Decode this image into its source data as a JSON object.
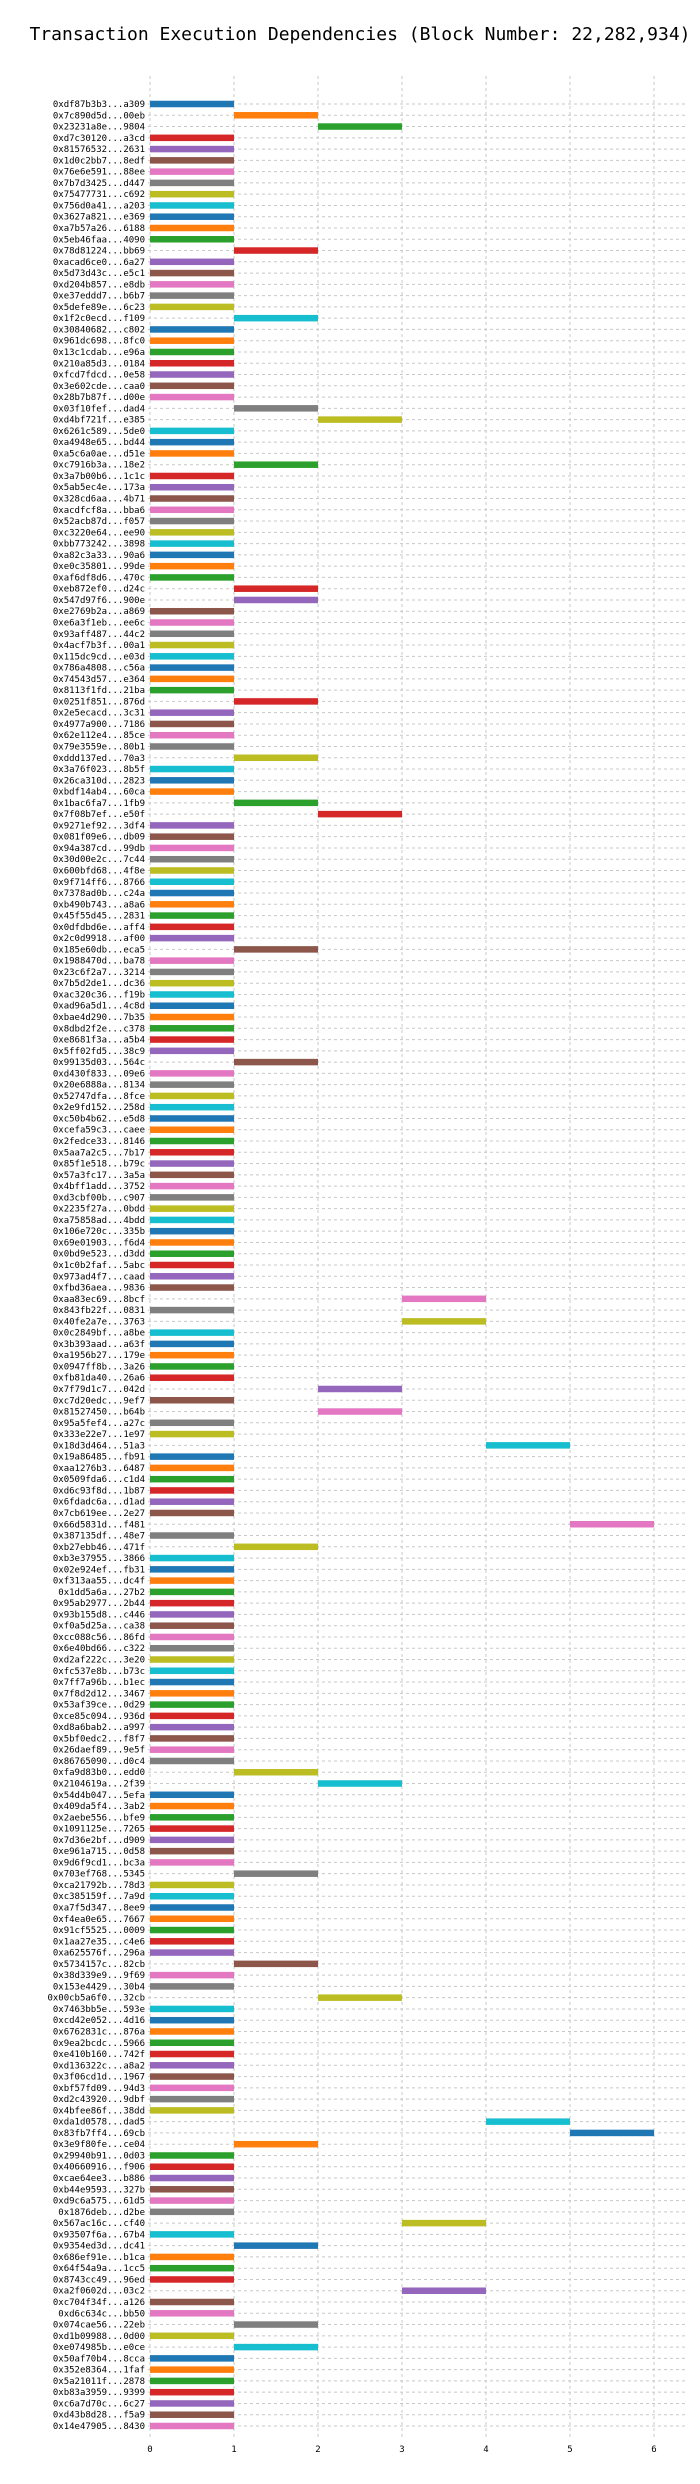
{
  "chart_data": {
    "type": "bar",
    "orientation": "horizontal",
    "title": "Transaction Execution Dependencies (Block Number: 22,282,934)",
    "xlabel": "",
    "ylabel": "",
    "xlim": [
      0,
      6.4
    ],
    "x_ticks": [
      "0",
      "1",
      "2",
      "3",
      "4",
      "5",
      "6"
    ],
    "grid": true,
    "palette": [
      "#1f77b4",
      "#ff7f0e",
      "#2ca02c",
      "#d62728",
      "#9467bd",
      "#8c564b",
      "#e377c2",
      "#7f7f7f",
      "#bcbd22",
      "#17becf"
    ],
    "transactions": [
      {
        "label": "0xdf87b3b3...a309",
        "start": 0,
        "end": 1
      },
      {
        "label": "0x7c890d5d...00eb",
        "start": 1,
        "end": 2
      },
      {
        "label": "0x23231a8e...9804",
        "start": 2,
        "end": 3
      },
      {
        "label": "0xd7c30120...a3cd",
        "start": 0,
        "end": 1
      },
      {
        "label": "0x81576532...2631",
        "start": 0,
        "end": 1
      },
      {
        "label": "0x1d0c2bb7...8edf",
        "start": 0,
        "end": 1
      },
      {
        "label": "0x76e6e591...88ee",
        "start": 0,
        "end": 1
      },
      {
        "label": "0x7b7d3425...d447",
        "start": 0,
        "end": 1
      },
      {
        "label": "0x75477731...c692",
        "start": 0,
        "end": 1
      },
      {
        "label": "0x756d0a41...a203",
        "start": 0,
        "end": 1
      },
      {
        "label": "0x3627a821...e369",
        "start": 0,
        "end": 1
      },
      {
        "label": "0xa7b57a26...6188",
        "start": 0,
        "end": 1
      },
      {
        "label": "0x5eb46faa...4090",
        "start": 0,
        "end": 1
      },
      {
        "label": "0x78d81224...bb69",
        "start": 1,
        "end": 2
      },
      {
        "label": "0xacad6ce0...6a27",
        "start": 0,
        "end": 1
      },
      {
        "label": "0x5d73d43c...e5c1",
        "start": 0,
        "end": 1
      },
      {
        "label": "0xd204b857...e8db",
        "start": 0,
        "end": 1
      },
      {
        "label": "0xe37eddd7...b6b7",
        "start": 0,
        "end": 1
      },
      {
        "label": "0x5defe89e...6c23",
        "start": 0,
        "end": 1
      },
      {
        "label": "0x1f2c0ecd...f109",
        "start": 1,
        "end": 2
      },
      {
        "label": "0x30840682...c802",
        "start": 0,
        "end": 1
      },
      {
        "label": "0x961dc698...8fc0",
        "start": 0,
        "end": 1
      },
      {
        "label": "0x13c1cdab...e96a",
        "start": 0,
        "end": 1
      },
      {
        "label": "0x210a85d3...0184",
        "start": 0,
        "end": 1
      },
      {
        "label": "0xfcd7fdcd...0e58",
        "start": 0,
        "end": 1
      },
      {
        "label": "0x3e602cde...caa0",
        "start": 0,
        "end": 1
      },
      {
        "label": "0x28b7b87f...d00e",
        "start": 0,
        "end": 1
      },
      {
        "label": "0x03f10fef...dad4",
        "start": 1,
        "end": 2
      },
      {
        "label": "0xd4bf721f...e385",
        "start": 2,
        "end": 3
      },
      {
        "label": "0x6261c589...5de0",
        "start": 0,
        "end": 1
      },
      {
        "label": "0xa4948e65...bd44",
        "start": 0,
        "end": 1
      },
      {
        "label": "0xa5c6a0ae...d51e",
        "start": 0,
        "end": 1
      },
      {
        "label": "0xc7916b3a...18e2",
        "start": 1,
        "end": 2
      },
      {
        "label": "0x3a7b00b6...1c1c",
        "start": 0,
        "end": 1
      },
      {
        "label": "0x5ab5ec4e...173a",
        "start": 0,
        "end": 1
      },
      {
        "label": "0x328cd6aa...4b71",
        "start": 0,
        "end": 1
      },
      {
        "label": "0xacdfcf8a...bba6",
        "start": 0,
        "end": 1
      },
      {
        "label": "0x52acb87d...f057",
        "start": 0,
        "end": 1
      },
      {
        "label": "0xc3220e64...ee90",
        "start": 0,
        "end": 1
      },
      {
        "label": "0xbb773242...3898",
        "start": 0,
        "end": 1
      },
      {
        "label": "0xa82c3a33...90a6",
        "start": 0,
        "end": 1
      },
      {
        "label": "0xe0c35801...99de",
        "start": 0,
        "end": 1
      },
      {
        "label": "0xaf6df8d6...470c",
        "start": 0,
        "end": 1
      },
      {
        "label": "0xeb872ef0...d24c",
        "start": 1,
        "end": 2
      },
      {
        "label": "0x547d97f6...900e",
        "start": 1,
        "end": 2
      },
      {
        "label": "0xe2769b2a...a869",
        "start": 0,
        "end": 1
      },
      {
        "label": "0xe6a3f1eb...ee6c",
        "start": 0,
        "end": 1
      },
      {
        "label": "0x93aff487...44c2",
        "start": 0,
        "end": 1
      },
      {
        "label": "0x4acf7b3f...00a1",
        "start": 0,
        "end": 1
      },
      {
        "label": "0x115dc9cd...e03d",
        "start": 0,
        "end": 1
      },
      {
        "label": "0x786a4808...c56a",
        "start": 0,
        "end": 1
      },
      {
        "label": "0x74543d57...e364",
        "start": 0,
        "end": 1
      },
      {
        "label": "0x8113f1fd...21ba",
        "start": 0,
        "end": 1
      },
      {
        "label": "0x0251f851...876d",
        "start": 1,
        "end": 2
      },
      {
        "label": "0x2e5ecacd...3c31",
        "start": 0,
        "end": 1
      },
      {
        "label": "0x4977a900...7186",
        "start": 0,
        "end": 1
      },
      {
        "label": "0x62e112e4...85ce",
        "start": 0,
        "end": 1
      },
      {
        "label": "0x79e3559e...80b1",
        "start": 0,
        "end": 1
      },
      {
        "label": "0xddd137ed...70a3",
        "start": 1,
        "end": 2
      },
      {
        "label": "0x3a76f023...8b5f",
        "start": 0,
        "end": 1
      },
      {
        "label": "0x26ca310d...2823",
        "start": 0,
        "end": 1
      },
      {
        "label": "0xbdf14ab4...60ca",
        "start": 0,
        "end": 1
      },
      {
        "label": "0x1bac6fa7...1fb9",
        "start": 1,
        "end": 2
      },
      {
        "label": "0x7f08b7ef...e50f",
        "start": 2,
        "end": 3
      },
      {
        "label": "0x9271ef92...3df4",
        "start": 0,
        "end": 1
      },
      {
        "label": "0x081f09e6...db09",
        "start": 0,
        "end": 1
      },
      {
        "label": "0x94a387cd...99db",
        "start": 0,
        "end": 1
      },
      {
        "label": "0x30d00e2c...7c44",
        "start": 0,
        "end": 1
      },
      {
        "label": "0x600bfd68...4f8e",
        "start": 0,
        "end": 1
      },
      {
        "label": "0x9f714ff6...8766",
        "start": 0,
        "end": 1
      },
      {
        "label": "0x7378ad0b...c24a",
        "start": 0,
        "end": 1
      },
      {
        "label": "0xb490b743...a8a6",
        "start": 0,
        "end": 1
      },
      {
        "label": "0x45f55d45...2831",
        "start": 0,
        "end": 1
      },
      {
        "label": "0x0dfdbd6e...aff4",
        "start": 0,
        "end": 1
      },
      {
        "label": "0x2c0d9918...af00",
        "start": 0,
        "end": 1
      },
      {
        "label": "0x185e60db...eca5",
        "start": 1,
        "end": 2
      },
      {
        "label": "0x1988470d...ba78",
        "start": 0,
        "end": 1
      },
      {
        "label": "0x23c6f2a7...3214",
        "start": 0,
        "end": 1
      },
      {
        "label": "0x7b5d2de1...dc36",
        "start": 0,
        "end": 1
      },
      {
        "label": "0xac320c36...f19b",
        "start": 0,
        "end": 1
      },
      {
        "label": "0xad96a5d1...4c8d",
        "start": 0,
        "end": 1
      },
      {
        "label": "0xbae4d290...7b35",
        "start": 0,
        "end": 1
      },
      {
        "label": "0x8dbd2f2e...c378",
        "start": 0,
        "end": 1
      },
      {
        "label": "0xe8681f3a...a5b4",
        "start": 0,
        "end": 1
      },
      {
        "label": "0x5ff02fd5...38c9",
        "start": 0,
        "end": 1
      },
      {
        "label": "0x99135d03...564c",
        "start": 1,
        "end": 2
      },
      {
        "label": "0xd430f833...09e6",
        "start": 0,
        "end": 1
      },
      {
        "label": "0x20e6888a...8134",
        "start": 0,
        "end": 1
      },
      {
        "label": "0x52747dfa...8fce",
        "start": 0,
        "end": 1
      },
      {
        "label": "0x2e9fd152...258d",
        "start": 0,
        "end": 1
      },
      {
        "label": "0xc50b4b62...e5d8",
        "start": 0,
        "end": 1
      },
      {
        "label": "0xcefa59c3...caee",
        "start": 0,
        "end": 1
      },
      {
        "label": "0x2fedce33...8146",
        "start": 0,
        "end": 1
      },
      {
        "label": "0x5aa7a2c5...7b17",
        "start": 0,
        "end": 1
      },
      {
        "label": "0x85f1e518...b79c",
        "start": 0,
        "end": 1
      },
      {
        "label": "0x57a3fc17...3a5a",
        "start": 0,
        "end": 1
      },
      {
        "label": "0x4bff1add...3752",
        "start": 0,
        "end": 1
      },
      {
        "label": "0xd3cbf00b...c907",
        "start": 0,
        "end": 1
      },
      {
        "label": "0x2235f27a...0bdd",
        "start": 0,
        "end": 1
      },
      {
        "label": "0xa75858ad...4bdd",
        "start": 0,
        "end": 1
      },
      {
        "label": "0x106e720c...335b",
        "start": 0,
        "end": 1
      },
      {
        "label": "0x69e01903...f6d4",
        "start": 0,
        "end": 1
      },
      {
        "label": "0x0bd9e523...d3dd",
        "start": 0,
        "end": 1
      },
      {
        "label": "0x1c0b2faf...5abc",
        "start": 0,
        "end": 1
      },
      {
        "label": "0x973ad4f7...caad",
        "start": 0,
        "end": 1
      },
      {
        "label": "0xfbd36aea...9836",
        "start": 0,
        "end": 1
      },
      {
        "label": "0xaa83ec69...8bcf",
        "start": 3,
        "end": 4
      },
      {
        "label": "0x843fb22f...0831",
        "start": 0,
        "end": 1
      },
      {
        "label": "0x40fe2a7e...3763",
        "start": 3,
        "end": 4
      },
      {
        "label": "0x0c2849bf...a8be",
        "start": 0,
        "end": 1
      },
      {
        "label": "0x3b393aad...a63f",
        "start": 0,
        "end": 1
      },
      {
        "label": "0xa1956b27...179e",
        "start": 0,
        "end": 1
      },
      {
        "label": "0x0947ff8b...3a26",
        "start": 0,
        "end": 1
      },
      {
        "label": "0xfb81da40...26a6",
        "start": 0,
        "end": 1
      },
      {
        "label": "0x7f79d1c7...042d",
        "start": 2,
        "end": 3
      },
      {
        "label": "0xc7d20edc...9ef7",
        "start": 0,
        "end": 1
      },
      {
        "label": "0x81527450...b64b",
        "start": 2,
        "end": 3
      },
      {
        "label": "0x95a5fef4...a27c",
        "start": 0,
        "end": 1
      },
      {
        "label": "0x333e22e7...1e97",
        "start": 0,
        "end": 1
      },
      {
        "label": "0x18d3d464...51a3",
        "start": 4,
        "end": 5
      },
      {
        "label": "0x19a86485...fb91",
        "start": 0,
        "end": 1
      },
      {
        "label": "0xaa1276b3...6487",
        "start": 0,
        "end": 1
      },
      {
        "label": "0x0509fda6...c1d4",
        "start": 0,
        "end": 1
      },
      {
        "label": "0xd6c93f8d...1b87",
        "start": 0,
        "end": 1
      },
      {
        "label": "0x6fdadc6a...d1ad",
        "start": 0,
        "end": 1
      },
      {
        "label": "0x7cb619ee...2e27",
        "start": 0,
        "end": 1
      },
      {
        "label": "0x66d5831d...f481",
        "start": 5,
        "end": 6
      },
      {
        "label": "0x387135df...48e7",
        "start": 0,
        "end": 1
      },
      {
        "label": "0xb27ebb46...471f",
        "start": 1,
        "end": 2
      },
      {
        "label": "0xb3e37955...3866",
        "start": 0,
        "end": 1
      },
      {
        "label": "0x02e924ef...fb31",
        "start": 0,
        "end": 1
      },
      {
        "label": "0xf313aa55...dc4f",
        "start": 0,
        "end": 1
      },
      {
        "label": "0x1dd5a6a...27b2",
        "start": 0,
        "end": 1
      },
      {
        "label": "0x95ab2977...2b44",
        "start": 0,
        "end": 1
      },
      {
        "label": "0x93b155d8...c446",
        "start": 0,
        "end": 1
      },
      {
        "label": "0xf0a5d25a...ca38",
        "start": 0,
        "end": 1
      },
      {
        "label": "0xcc088c56...86fd",
        "start": 0,
        "end": 1
      },
      {
        "label": "0x6e40bd66...c322",
        "start": 0,
        "end": 1
      },
      {
        "label": "0xd2af222c...3e20",
        "start": 0,
        "end": 1
      },
      {
        "label": "0xfc537e8b...b73c",
        "start": 0,
        "end": 1
      },
      {
        "label": "0x7ff7a96b...b1ec",
        "start": 0,
        "end": 1
      },
      {
        "label": "0x7f8d2d12...3467",
        "start": 0,
        "end": 1
      },
      {
        "label": "0x53af39ce...0d29",
        "start": 0,
        "end": 1
      },
      {
        "label": "0xce85c094...936d",
        "start": 0,
        "end": 1
      },
      {
        "label": "0xd8a6bab2...a997",
        "start": 0,
        "end": 1
      },
      {
        "label": "0x5bf0edc2...f8f7",
        "start": 0,
        "end": 1
      },
      {
        "label": "0x26daef89...9e5f",
        "start": 0,
        "end": 1
      },
      {
        "label": "0x86765090...d0c4",
        "start": 0,
        "end": 1
      },
      {
        "label": "0xfa9d83b0...edd0",
        "start": 1,
        "end": 2
      },
      {
        "label": "0x2104619a...2f39",
        "start": 2,
        "end": 3
      },
      {
        "label": "0x54d4b047...5efa",
        "start": 0,
        "end": 1
      },
      {
        "label": "0x409da5f4...3ab2",
        "start": 0,
        "end": 1
      },
      {
        "label": "0x2aebe556...bfe9",
        "start": 0,
        "end": 1
      },
      {
        "label": "0x1091125e...7265",
        "start": 0,
        "end": 1
      },
      {
        "label": "0x7d36e2bf...d909",
        "start": 0,
        "end": 1
      },
      {
        "label": "0xe961a715...0d58",
        "start": 0,
        "end": 1
      },
      {
        "label": "0x9d6f9cd1...bc3a",
        "start": 0,
        "end": 1
      },
      {
        "label": "0x703ef768...5345",
        "start": 1,
        "end": 2
      },
      {
        "label": "0xca21792b...78d3",
        "start": 0,
        "end": 1
      },
      {
        "label": "0xc385159f...7a9d",
        "start": 0,
        "end": 1
      },
      {
        "label": "0xa7f5d347...8ee9",
        "start": 0,
        "end": 1
      },
      {
        "label": "0xf4ea0e65...7667",
        "start": 0,
        "end": 1
      },
      {
        "label": "0x91cf5525...0009",
        "start": 0,
        "end": 1
      },
      {
        "label": "0x1aa27e35...c4e6",
        "start": 0,
        "end": 1
      },
      {
        "label": "0xa625576f...296a",
        "start": 0,
        "end": 1
      },
      {
        "label": "0x5734157c...82cb",
        "start": 1,
        "end": 2
      },
      {
        "label": "0x38d339e9...9f69",
        "start": 0,
        "end": 1
      },
      {
        "label": "0x153e4429...30b4",
        "start": 0,
        "end": 1
      },
      {
        "label": "0x00cb5a6f0...32cb",
        "start": 2,
        "end": 3
      },
      {
        "label": "0x7463bb5e...593e",
        "start": 0,
        "end": 1
      },
      {
        "label": "0xcd42e052...4d16",
        "start": 0,
        "end": 1
      },
      {
        "label": "0x6762831c...876a",
        "start": 0,
        "end": 1
      },
      {
        "label": "0x9ea2bcdc...5966",
        "start": 0,
        "end": 1
      },
      {
        "label": "0xe410b160...742f",
        "start": 0,
        "end": 1
      },
      {
        "label": "0xd136322c...a8a2",
        "start": 0,
        "end": 1
      },
      {
        "label": "0x3f06cd1d...1967",
        "start": 0,
        "end": 1
      },
      {
        "label": "0xbf57fd09...94d3",
        "start": 0,
        "end": 1
      },
      {
        "label": "0xd2c43920...9dbf",
        "start": 0,
        "end": 1
      },
      {
        "label": "0x4bfee86f...38dd",
        "start": 0,
        "end": 1
      },
      {
        "label": "0xda1d0578...dad5",
        "start": 4,
        "end": 5
      },
      {
        "label": "0x83fb7ff4...69cb",
        "start": 5,
        "end": 6
      },
      {
        "label": "0x3e9f80fe...ce04",
        "start": 1,
        "end": 2
      },
      {
        "label": "0x29940b91...0d03",
        "start": 0,
        "end": 1
      },
      {
        "label": "0x40660916...f906",
        "start": 0,
        "end": 1
      },
      {
        "label": "0xcae64ee3...b886",
        "start": 0,
        "end": 1
      },
      {
        "label": "0xb44e9593...327b",
        "start": 0,
        "end": 1
      },
      {
        "label": "0xd9c6a575...61d5",
        "start": 0,
        "end": 1
      },
      {
        "label": "0x1876deb...d2be",
        "start": 0,
        "end": 1
      },
      {
        "label": "0x567ac16c...cf40",
        "start": 3,
        "end": 4
      },
      {
        "label": "0x93507f6a...67b4",
        "start": 0,
        "end": 1
      },
      {
        "label": "0x9354ed3d...dc41",
        "start": 1,
        "end": 2
      },
      {
        "label": "0x686ef91e...b1ca",
        "start": 0,
        "end": 1
      },
      {
        "label": "0x64f54a9a...1cc5",
        "start": 0,
        "end": 1
      },
      {
        "label": "0x8743cc49...96ed",
        "start": 0,
        "end": 1
      },
      {
        "label": "0xa2f0602d...03c2",
        "start": 3,
        "end": 4
      },
      {
        "label": "0xc704f34f...a126",
        "start": 0,
        "end": 1
      },
      {
        "label": "0xd6c634c...bb50",
        "start": 0,
        "end": 1
      },
      {
        "label": "0x074cae56...22eb",
        "start": 1,
        "end": 2
      },
      {
        "label": "0xd1b09988...0d00",
        "start": 0,
        "end": 1
      },
      {
        "label": "0xe074985b...e0ce",
        "start": 1,
        "end": 2
      },
      {
        "label": "0x50af70b4...8cca",
        "start": 0,
        "end": 1
      },
      {
        "label": "0x352e8364...1faf",
        "start": 0,
        "end": 1
      },
      {
        "label": "0x5a21011f...2878",
        "start": 0,
        "end": 1
      },
      {
        "label": "0xb83a3959...9399",
        "start": 0,
        "end": 1
      },
      {
        "label": "0xc6a7d70c...6c27",
        "start": 0,
        "end": 1
      },
      {
        "label": "0xd43b8d28...f5a9",
        "start": 0,
        "end": 1
      },
      {
        "label": "0x14e47905...8430",
        "start": 0,
        "end": 1
      }
    ]
  }
}
